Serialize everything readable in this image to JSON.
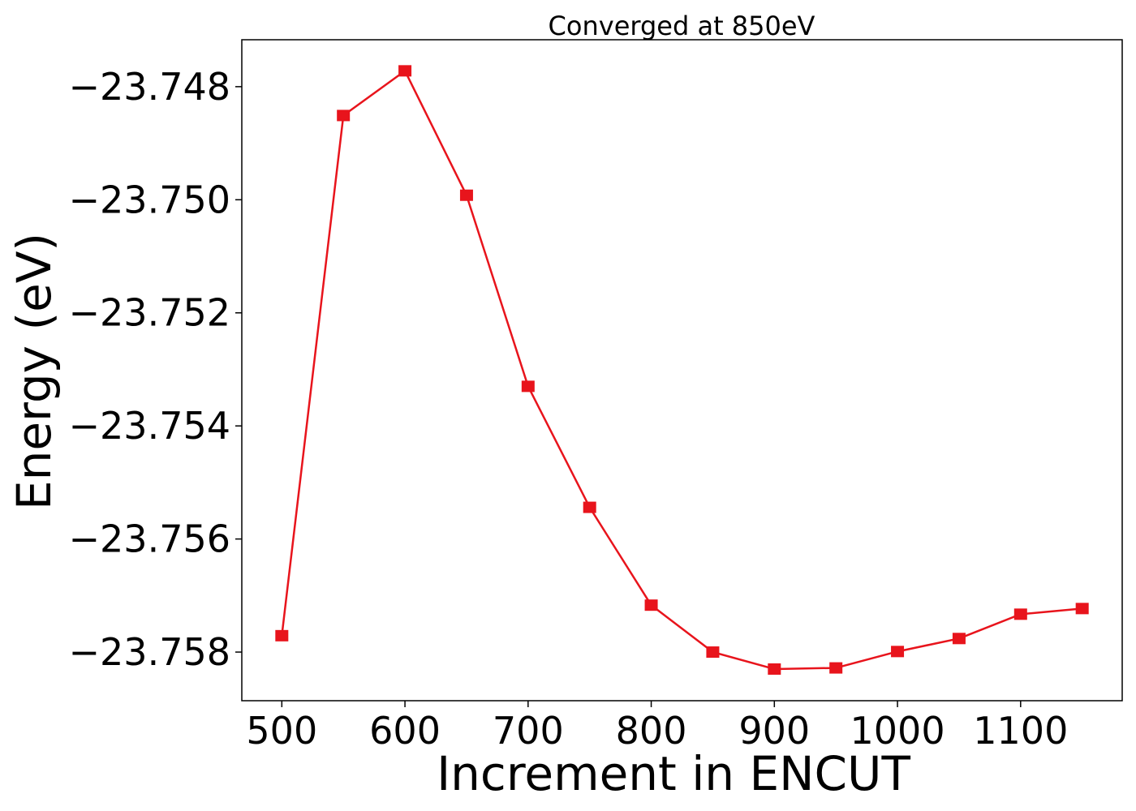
{
  "chart_data": {
    "type": "line",
    "title": "Converged at 850eV",
    "xlabel": "Increment in ENCUT",
    "ylabel": "Energy (eV)",
    "xlim": [
      467.5,
      1182.5
    ],
    "ylim": [
      -23.75886,
      -23.74717
    ],
    "xticks": [
      500,
      600,
      700,
      800,
      900,
      1000,
      1100
    ],
    "xtick_labels": [
      "500",
      "600",
      "700",
      "800",
      "900",
      "1000",
      "1100"
    ],
    "yticks": [
      -23.748,
      -23.75,
      -23.752,
      -23.754,
      -23.756,
      -23.758
    ],
    "ytick_labels": [
      "−23.748",
      "−23.750",
      "−23.752",
      "−23.754",
      "−23.756",
      "−23.758"
    ],
    "grid": false,
    "colors": {
      "series": "#e8141c"
    },
    "series": [
      {
        "marker": "square",
        "x": [
          500,
          550,
          600,
          650,
          700,
          750,
          800,
          850,
          900,
          950,
          1000,
          1050,
          1100,
          1150
        ],
        "y": [
          -23.75771,
          -23.74851,
          -23.74772,
          -23.74992,
          -23.7533,
          -23.75544,
          -23.75717,
          -23.758,
          -23.7583,
          -23.75828,
          -23.75799,
          -23.75776,
          -23.75733,
          -23.75723
        ]
      }
    ]
  }
}
